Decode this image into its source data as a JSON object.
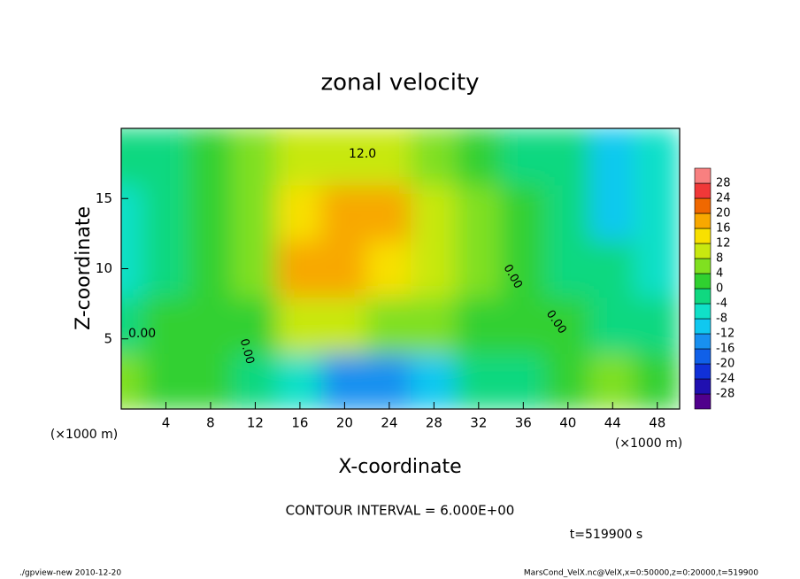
{
  "chart_data": {
    "type": "contour",
    "title": "zonal velocity",
    "x_label": "X-coordinate",
    "y_label": "Z-coordinate",
    "x_unit": "(×1000 m)",
    "y_unit": "(×1000 m)",
    "x": [
      0,
      4,
      8,
      12,
      16,
      20,
      24,
      28,
      32,
      36,
      40,
      44,
      48
    ],
    "z": [
      2,
      6,
      10,
      14,
      18
    ],
    "values": [
      [
        4,
        0,
        2,
        -2,
        -8,
        -14,
        -16,
        -10,
        -4,
        -2,
        2,
        6,
        2
      ],
      [
        -2,
        2,
        2,
        0,
        8,
        8,
        6,
        4,
        0,
        0,
        2,
        -2,
        -4
      ],
      [
        -6,
        -2,
        2,
        6,
        16,
        18,
        14,
        10,
        6,
        2,
        -2,
        -4,
        -6
      ],
      [
        -8,
        -4,
        0,
        6,
        14,
        16,
        16,
        10,
        4,
        0,
        -4,
        -10,
        -8
      ],
      [
        -4,
        -2,
        0,
        4,
        8,
        10,
        10,
        6,
        2,
        -2,
        -4,
        -10,
        -6
      ]
    ],
    "xlim": [
      0,
      50
    ],
    "ylim": [
      0,
      20
    ],
    "xticks": [
      4,
      8,
      12,
      16,
      20,
      24,
      28,
      32,
      36,
      40,
      44,
      48
    ],
    "yticks": [
      5,
      10,
      15
    ],
    "levels": [
      -28,
      -24,
      -20,
      -16,
      -12,
      -8,
      -4,
      0,
      4,
      8,
      12,
      16,
      20,
      24,
      28
    ],
    "level_colors": [
      "#50008c",
      "#2010b0",
      "#1030d8",
      "#1060e8",
      "#1890f0",
      "#10c8f0",
      "#10e0c8",
      "#10d880",
      "#30d030",
      "#80e020",
      "#c8e810",
      "#f8e000",
      "#f8a800",
      "#f06800",
      "#f03838",
      "#f88080"
    ],
    "contour_labels": [
      "12.0",
      "0.00",
      "0.00",
      "0.00",
      "0.00"
    ],
    "interval_note": "CONTOUR INTERVAL = 6.000E+00",
    "time_note": "t=519900 s",
    "footer_left": "./gpview-new  2010-12-20",
    "footer_right": "MarsCond_VelX.nc@VelX,x=0:50000,z=0:20000,t=519900"
  }
}
